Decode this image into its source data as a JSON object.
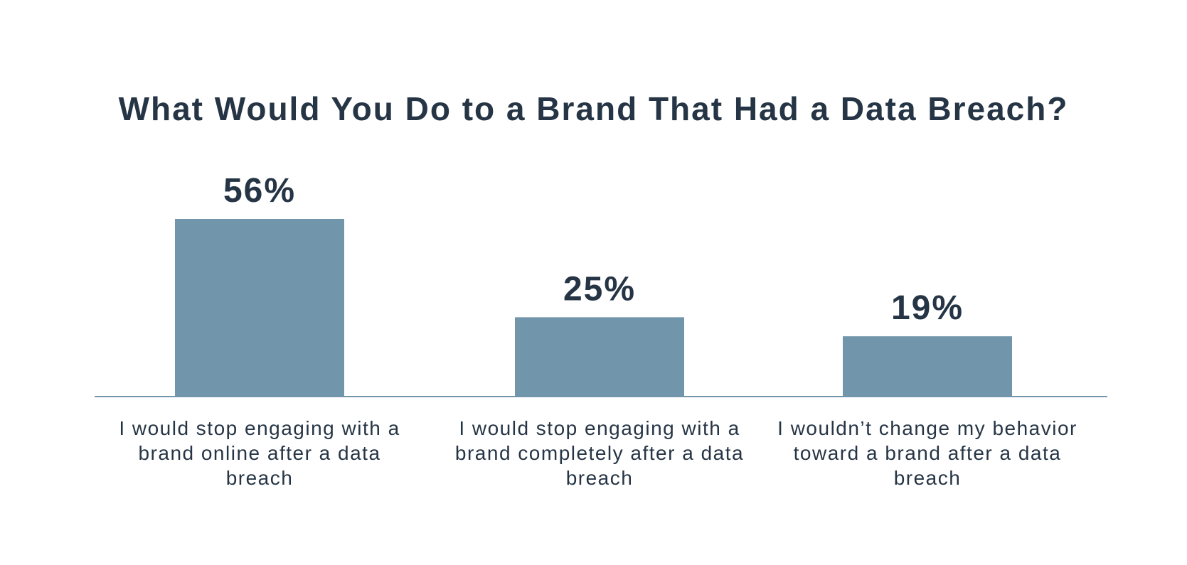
{
  "chart_data": {
    "type": "bar",
    "title": "What Would You Do to a Brand That Had a Data Breach?",
    "categories": [
      "I would stop engaging with a brand online after a data breach",
      "I would stop engaging with a brand completely after a data breach",
      "I wouldn’t change my behavior toward a brand after a data breach"
    ],
    "values": [
      56,
      25,
      19
    ],
    "value_labels": [
      "56%",
      "25%",
      "19%"
    ],
    "ylim": [
      0,
      60
    ],
    "grid": false,
    "legend": "none",
    "colors": {
      "bar": "#7195AA",
      "axis": "#7195AA",
      "text": "#263545"
    }
  }
}
